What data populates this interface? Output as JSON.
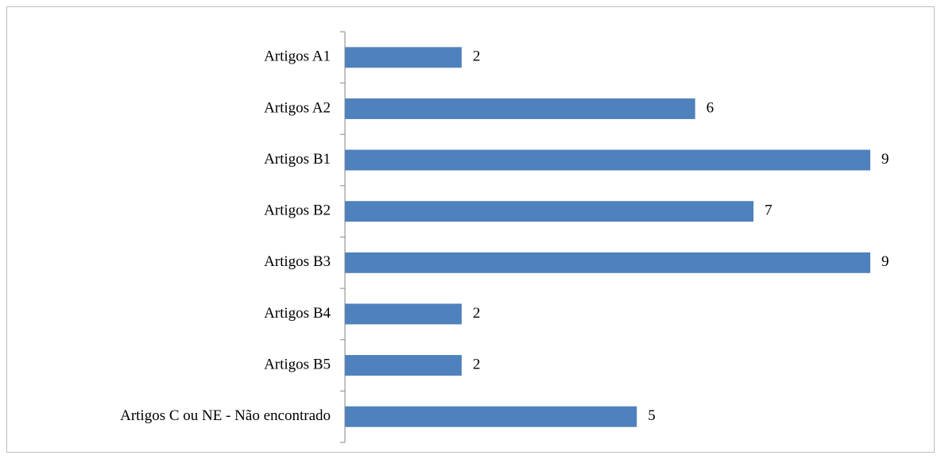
{
  "chart_data": {
    "type": "bar",
    "orientation": "horizontal",
    "categories": [
      "Artigos A1",
      "Artigos A2",
      "Artigos B1",
      "Artigos B2",
      "Artigos B3",
      "Artigos B4",
      "Artigos B5",
      "Artigos C ou NE - Não encontrado"
    ],
    "values": [
      2,
      6,
      9,
      7,
      9,
      2,
      2,
      5
    ],
    "color": "#4f81bd"
  }
}
